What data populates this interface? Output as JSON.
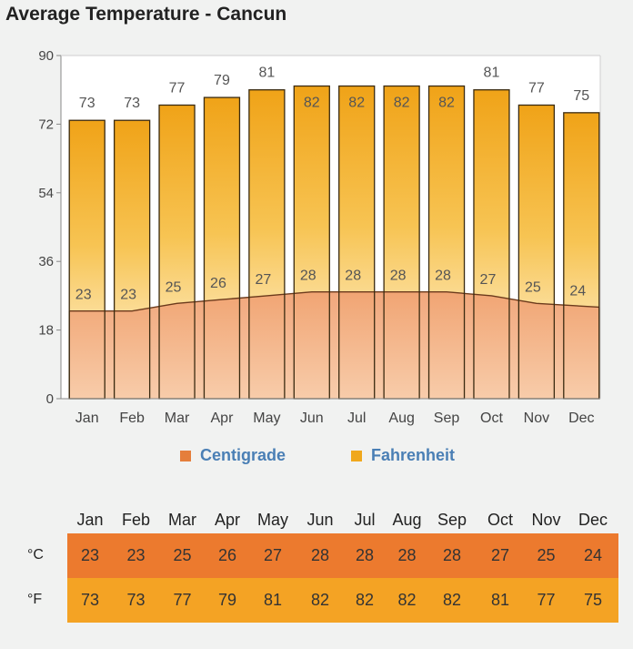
{
  "title": "Average Temperature - Cancun",
  "chart_data": {
    "type": "bar",
    "categories": [
      "Jan",
      "Feb",
      "Mar",
      "Apr",
      "May",
      "Jun",
      "Jul",
      "Aug",
      "Sep",
      "Oct",
      "Nov",
      "Dec"
    ],
    "series": [
      {
        "name": "Fahrenheit",
        "type": "bar",
        "values": [
          73,
          73,
          77,
          79,
          81,
          82,
          82,
          82,
          82,
          81,
          77,
          75
        ],
        "color": "#f0a81c"
      },
      {
        "name": "Centigrade",
        "type": "area",
        "values": [
          23,
          23,
          25,
          26,
          27,
          28,
          28,
          28,
          28,
          27,
          25,
          24
        ],
        "color": "#e8864a"
      }
    ],
    "yticks": [
      0,
      18,
      36,
      54,
      72,
      90
    ],
    "ylim": [
      0,
      90
    ],
    "grid": false,
    "legend": "bottom"
  },
  "legend": {
    "centigrade": {
      "label": "Centigrade",
      "color": "#e57e3b"
    },
    "fahrenheit": {
      "label": "Fahrenheit",
      "color": "#f0a81c"
    }
  },
  "table": {
    "celsius_label": "°C",
    "fahrenheit_label": "°F",
    "celsius_color": "#ec7a2e",
    "fahrenheit_color": "#f4a324"
  }
}
